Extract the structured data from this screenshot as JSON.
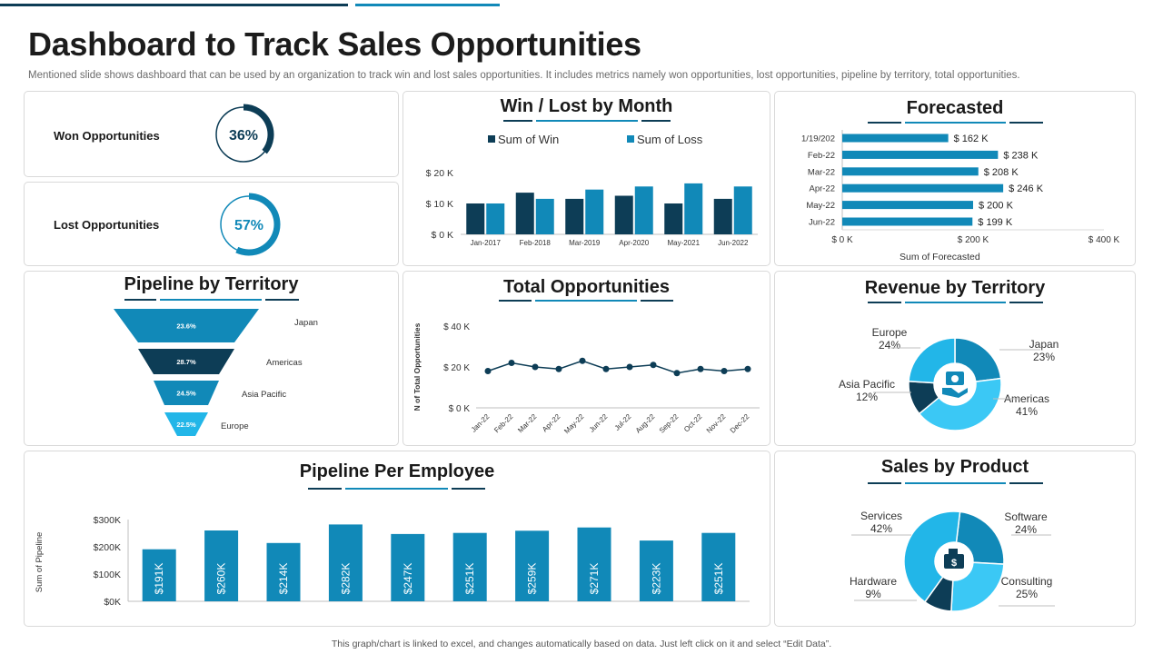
{
  "page": {
    "title": "Dashboard to Track Sales Opportunities",
    "subtitle": "Mentioned slide shows dashboard that can be used by an organization to track win and lost sales opportunities. It includes metrics namely won opportunities, lost opportunities, pipeline by territory, total opportunities.",
    "footer": "This graph/chart is linked to excel, and changes automatically based on data. Just left click on it and select “Edit Data”."
  },
  "colors": {
    "dark": "#0d3d56",
    "teal": "#1189b8",
    "light": "#22b6e8",
    "sky": "#3bc8f5"
  },
  "kpis": {
    "won": {
      "label": "Won Opportunities",
      "value": "36%",
      "fraction": 0.36
    },
    "lost": {
      "label": "Lost Opportunities",
      "value": "57%",
      "fraction": 0.57
    }
  },
  "chart_data": [
    {
      "id": "win_lost",
      "type": "bar",
      "title": "Win / Lost by Month",
      "categories": [
        "Jan-2017",
        "Feb-2018",
        "Mar-2019",
        "Apr-2020",
        "May-2021",
        "Jun-2022"
      ],
      "series": [
        {
          "name": "Sum of Win",
          "values": [
            10,
            13.5,
            11.5,
            12.5,
            10,
            11.5
          ]
        },
        {
          "name": "Sum of Loss",
          "values": [
            10,
            11.5,
            14.5,
            15.5,
            16.5,
            15.5
          ]
        }
      ],
      "yticks": [
        "$ 0 K",
        "$ 10 K",
        "$ 20 K"
      ],
      "ylim": [
        0,
        20
      ]
    },
    {
      "id": "forecasted",
      "type": "bar",
      "orientation": "horizontal",
      "title": "Forecasted",
      "categories": [
        "1/19/202",
        "Feb-22",
        "Mar-22",
        "Apr-22",
        "May-22",
        "Jun-22"
      ],
      "values": [
        162,
        238,
        208,
        246,
        200,
        199
      ],
      "labels": [
        "$ 162 K",
        "$ 238 K",
        "$ 208 K",
        "$ 246 K",
        "$ 200 K",
        "$ 199 K"
      ],
      "xticks": [
        "$ 0 K",
        "$ 200 K",
        "$ 400 K"
      ],
      "xlim": [
        0,
        400
      ],
      "xlabel": "Sum of Forecasted"
    },
    {
      "id": "pipeline_territory",
      "type": "funnel",
      "title": "Pipeline by Territory",
      "categories": [
        "Japan",
        "Americas",
        "Asia Pacific",
        "Europe"
      ],
      "labels": [
        "23.6%",
        "28.7%",
        "24.5%",
        "22.5%"
      ]
    },
    {
      "id": "total_opps",
      "type": "line",
      "title": "Total Opportunities",
      "x": [
        "Jan-22",
        "Feb-22",
        "Mar-22",
        "Apr-22",
        "May-22",
        "Jun-22",
        "Jul-22",
        "Aug-22",
        "Sep-22",
        "Oct-22",
        "Nov-22",
        "Dec-22"
      ],
      "values": [
        18,
        22,
        20,
        19,
        23,
        19,
        20,
        21,
        17,
        19,
        18,
        19
      ],
      "yticks": [
        "$ 0 K",
        "$ 20 K",
        "$ 40 K"
      ],
      "ylim": [
        0,
        40
      ],
      "ylabel": "N of Total Opportunities"
    },
    {
      "id": "revenue_territory",
      "type": "pie",
      "title": "Revenue by Territory",
      "categories": [
        "Japan",
        "Americas",
        "Asia Pacific",
        "Europe"
      ],
      "values": [
        23,
        41,
        12,
        24
      ],
      "labels": [
        "23%",
        "41%",
        "12%",
        "24%"
      ]
    },
    {
      "id": "pipeline_employee",
      "type": "bar",
      "title": "Pipeline Per Employee",
      "values": [
        191,
        260,
        214,
        282,
        247,
        251,
        259,
        271,
        223,
        251
      ],
      "labels": [
        "$191K",
        "$260K",
        "$214K",
        "$282K",
        "$247K",
        "$251K",
        "$259K",
        "$271K",
        "$223K",
        "$251K"
      ],
      "yticks": [
        "$0K",
        "$100K",
        "$200K",
        "$300K"
      ],
      "ylim": [
        0,
        300
      ],
      "ylabel": "Sum of Pipeline"
    },
    {
      "id": "sales_product",
      "type": "pie",
      "title": "Sales by Product",
      "categories": [
        "Software",
        "Consulting",
        "Hardware",
        "Services"
      ],
      "values": [
        24,
        25,
        9,
        42
      ],
      "labels": [
        "24%",
        "25%",
        "9%",
        "42%"
      ]
    }
  ]
}
